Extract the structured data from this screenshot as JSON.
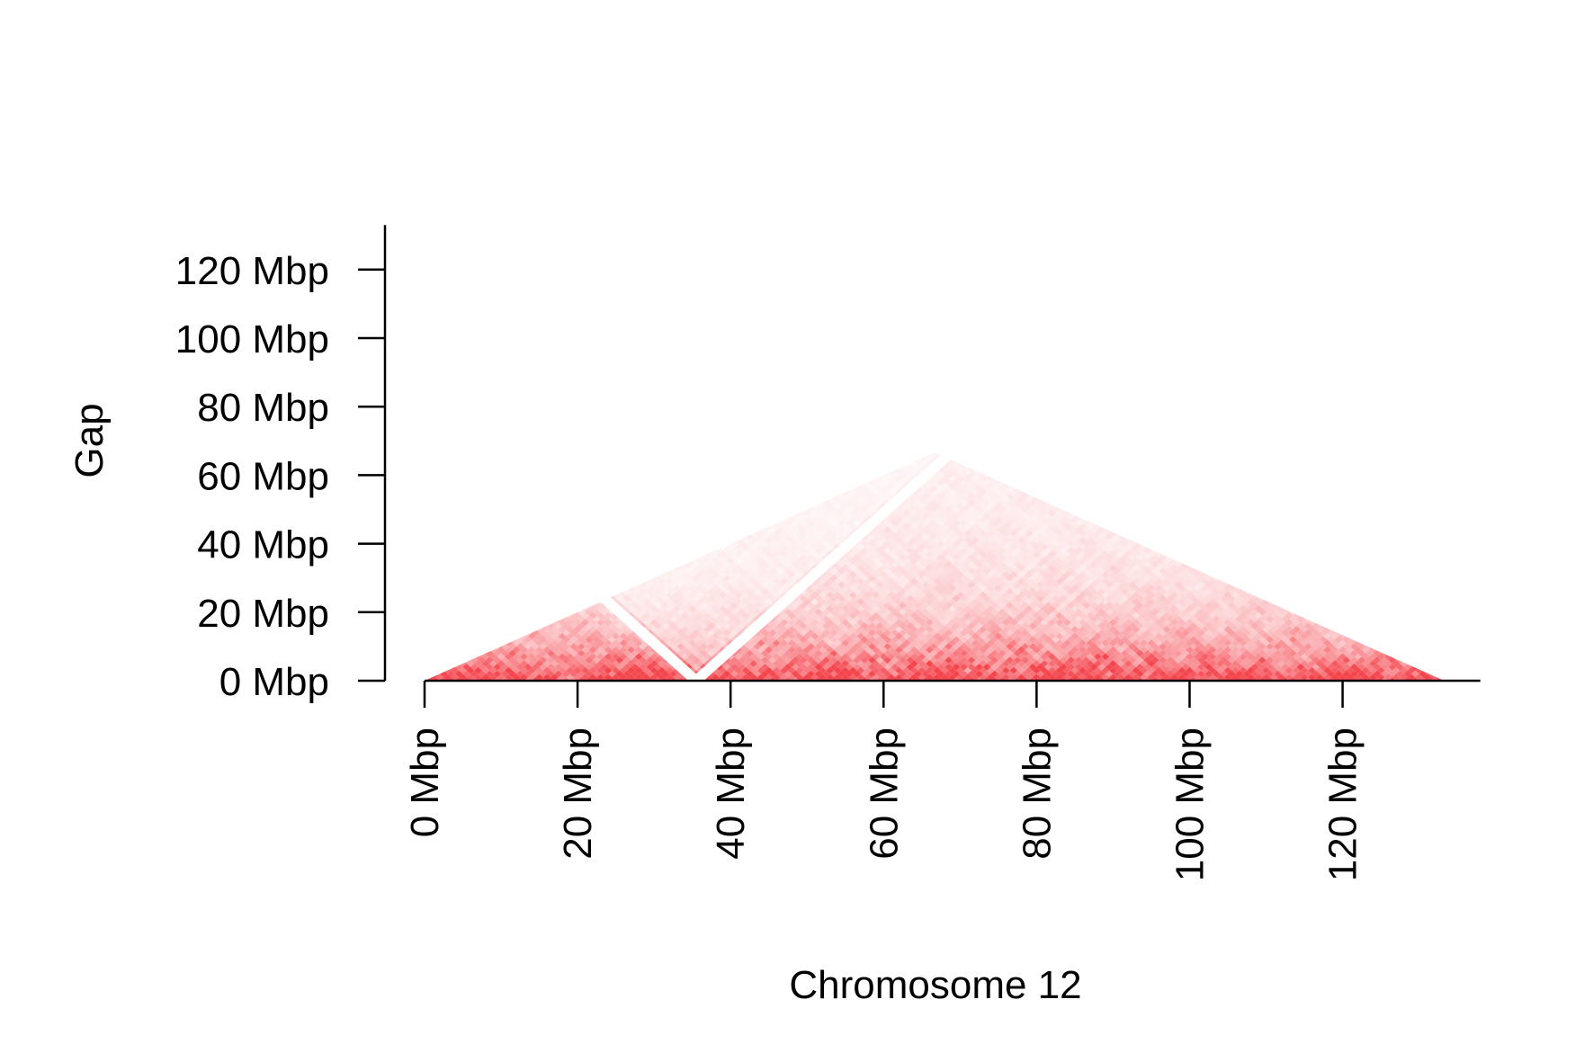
{
  "chart_data": {
    "type": "heatmap",
    "title": "",
    "xlabel": "Chromosome 12",
    "ylabel": "Gap",
    "x_unit": "Mbp",
    "y_unit": "Mbp",
    "xlim": [
      0,
      138
    ],
    "ylim": [
      0,
      133
    ],
    "x_ticks": [
      0,
      20,
      40,
      60,
      80,
      100,
      120
    ],
    "y_ticks": [
      0,
      20,
      40,
      60,
      80,
      100,
      120
    ],
    "x_tick_labels": [
      "0 Mbp",
      "20 Mbp",
      "40 Mbp",
      "60 Mbp",
      "80 Mbp",
      "100 Mbp",
      "120 Mbp"
    ],
    "y_tick_labels": [
      "0 Mbp",
      "20 Mbp",
      "40 Mbp",
      "60 Mbp",
      "80 Mbp",
      "100 Mbp",
      "120 Mbp"
    ],
    "chromosome_start": 0,
    "chromosome_end": 133.3,
    "unmapped_region": [
      34.5,
      36.5
    ],
    "colors": {
      "heat": "#f4444c",
      "axis": "#000000",
      "background": "#ffffff"
    },
    "grid": false,
    "legend": "none"
  }
}
